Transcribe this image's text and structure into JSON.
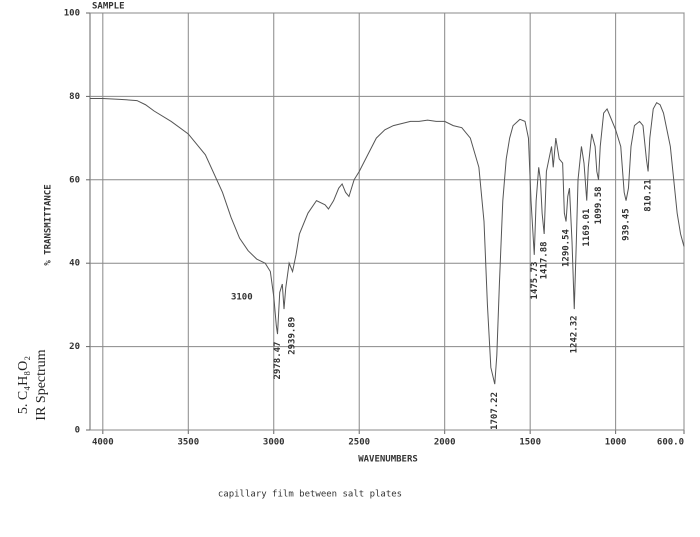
{
  "chart_data": {
    "type": "line",
    "title": "SAMPLE",
    "x_label": "WAVENUMBERS",
    "y_label": "% TRANSMITTANCE",
    "caption": "capillary film between salt plates",
    "side_title": "5. C₄H₈O₂",
    "side_subtitle": "IR Spectrum",
    "color": "#555555",
    "grid": true,
    "xlim": [
      4075,
      600
    ],
    "ylim": [
      0,
      100
    ],
    "xticks": [
      4000,
      3500,
      3000,
      2500,
      2000,
      1500,
      1000,
      {
        "value": 600,
        "label": "600.0"
      }
    ],
    "yticks": [
      0,
      20,
      40,
      60,
      80,
      100
    ],
    "x": [
      4075,
      4000,
      3900,
      3800,
      3750,
      3700,
      3600,
      3500,
      3400,
      3300,
      3250,
      3200,
      3150,
      3100,
      3050,
      3020,
      3000,
      2985,
      2978,
      2965,
      2950,
      2940,
      2930,
      2910,
      2890,
      2870,
      2850,
      2800,
      2750,
      2700,
      2680,
      2650,
      2620,
      2600,
      2580,
      2560,
      2530,
      2500,
      2450,
      2400,
      2350,
      2300,
      2250,
      2200,
      2150,
      2100,
      2050,
      2000,
      1950,
      1900,
      1850,
      1800,
      1770,
      1750,
      1730,
      1707,
      1695,
      1680,
      1660,
      1640,
      1620,
      1600,
      1560,
      1530,
      1510,
      1495,
      1476,
      1465,
      1450,
      1440,
      1430,
      1418,
      1405,
      1390,
      1375,
      1365,
      1350,
      1330,
      1310,
      1300,
      1290,
      1280,
      1270,
      1255,
      1242,
      1230,
      1220,
      1200,
      1185,
      1169,
      1160,
      1140,
      1120,
      1110,
      1100,
      1090,
      1070,
      1050,
      1030,
      1000,
      970,
      950,
      939,
      925,
      910,
      890,
      860,
      840,
      820,
      810,
      800,
      780,
      760,
      740,
      720,
      700,
      680,
      660,
      640,
      620,
      600
    ],
    "values": [
      79.5,
      79.5,
      79.3,
      79,
      78,
      76.5,
      74,
      71,
      66,
      57,
      51,
      46,
      43,
      41,
      40,
      38,
      32,
      25,
      23,
      33,
      35,
      29,
      34,
      40,
      38,
      42,
      47,
      52,
      55,
      54,
      53,
      55,
      58,
      59,
      57,
      56,
      60,
      62,
      66,
      70,
      72,
      73,
      73.5,
      74,
      74,
      74.3,
      74,
      74,
      73,
      72.5,
      70,
      63,
      50,
      30,
      15,
      11,
      18,
      35,
      55,
      65,
      70,
      73,
      74.5,
      74,
      70,
      55,
      42,
      55,
      63,
      60,
      52,
      47,
      62,
      65,
      68,
      63,
      70,
      65,
      64,
      52,
      50,
      56,
      58,
      45,
      29,
      45,
      60,
      68,
      64,
      55,
      63,
      71,
      68,
      62,
      60,
      68,
      76,
      77,
      75,
      72,
      68,
      57,
      55,
      58,
      68,
      73,
      74,
      73,
      65,
      62,
      70,
      77,
      78.5,
      78,
      76,
      72,
      68,
      60,
      52,
      47,
      44
    ],
    "annotations": [
      {
        "label": "3100",
        "x": 3100
      },
      {
        "label": "2978.47",
        "x": 2978.47
      },
      {
        "label": "2939.89",
        "x": 2939.89
      },
      {
        "label": "1707.22",
        "x": 1707.22
      },
      {
        "label": "1475.73",
        "x": 1475.73
      },
      {
        "label": "1417.88",
        "x": 1417.88
      },
      {
        "label": "1290.54",
        "x": 1290.54
      },
      {
        "label": "1242.32",
        "x": 1242.32
      },
      {
        "label": "1169.01",
        "x": 1169.01
      },
      {
        "label": "1099.58",
        "x": 1099.58
      },
      {
        "label": "939.45",
        "x": 939.45
      },
      {
        "label": "810.21",
        "x": 810.21
      }
    ]
  }
}
